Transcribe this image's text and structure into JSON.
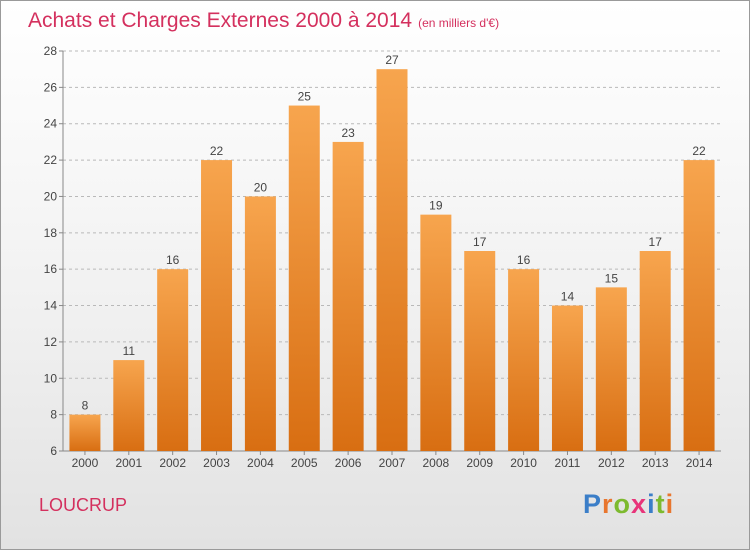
{
  "header": {
    "title": "Achats et Charges Externes 2000 à 2014",
    "subtitle": "(en milliers d'€)"
  },
  "footer": {
    "location": "LOUCRUP",
    "brand": [
      "P",
      "r",
      "o",
      "x",
      "i",
      "t",
      "i"
    ],
    "brand_colors": [
      "#3b7ec8",
      "#e8762e",
      "#7dba2f",
      "#e8347a",
      "#3b7ec8",
      "#7dba2f",
      "#e8762e"
    ]
  },
  "colors": {
    "title": "#d4305e",
    "bar_light": "#f7a54e",
    "bar_dark": "#d86e12",
    "grid": "#b9b9b9"
  },
  "chart_data": {
    "type": "bar",
    "title": "Achats et Charges Externes 2000 à 2014",
    "subtitle": "(en milliers d'€)",
    "categories": [
      "2000",
      "2001",
      "2002",
      "2003",
      "2004",
      "2005",
      "2006",
      "2007",
      "2008",
      "2009",
      "2010",
      "2011",
      "2012",
      "2013",
      "2014"
    ],
    "values": [
      8,
      11,
      16,
      22,
      20,
      25,
      23,
      27,
      19,
      17,
      16,
      14,
      15,
      17,
      22
    ],
    "ylim": [
      6,
      28
    ],
    "yticks": [
      6,
      8,
      10,
      12,
      14,
      16,
      18,
      20,
      22,
      24,
      26,
      28
    ],
    "grid": true,
    "xlabel": "",
    "ylabel": ""
  }
}
